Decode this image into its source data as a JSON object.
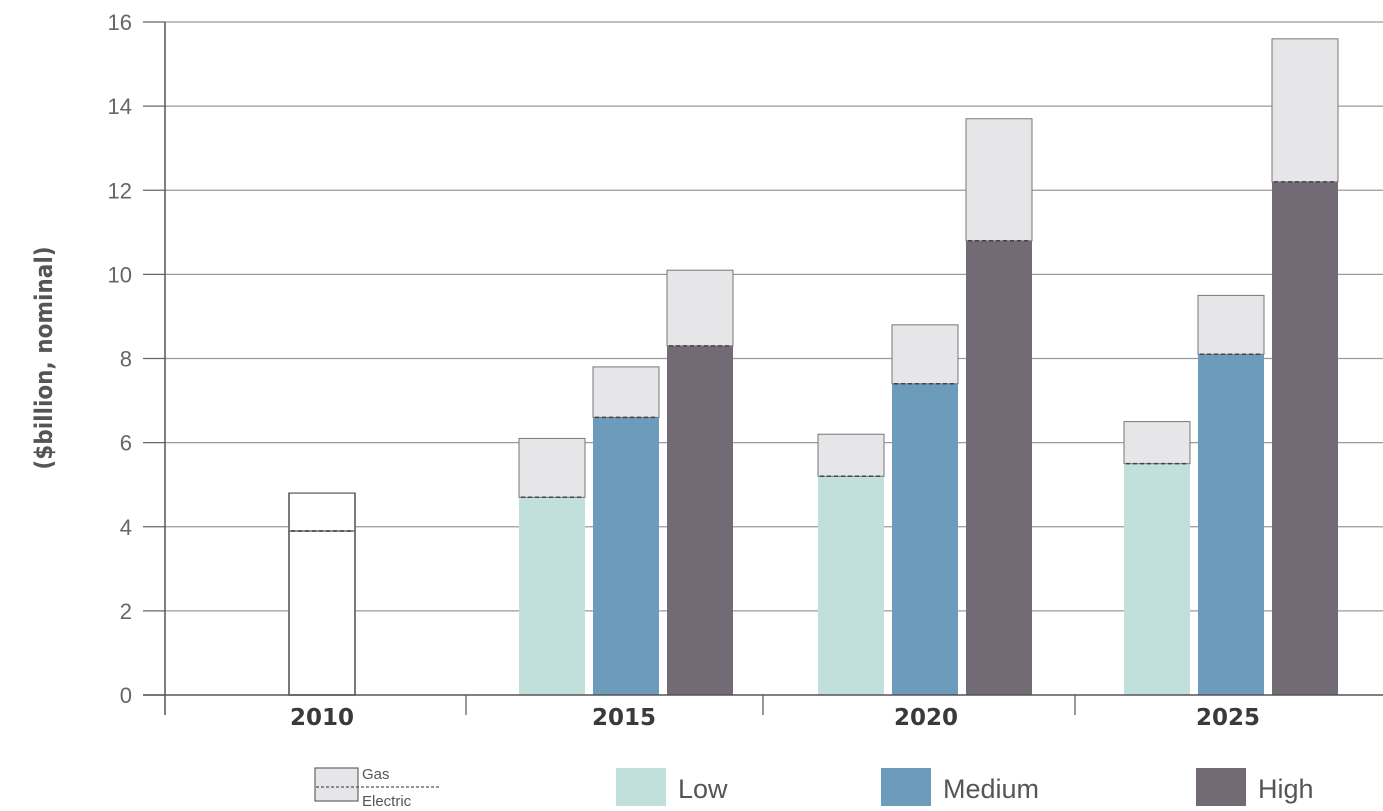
{
  "chart_data": {
    "type": "bar",
    "ylabel": "($billion, nominal)",
    "xlabel": "",
    "ylim": [
      0,
      16
    ],
    "yticks": [
      0,
      2,
      4,
      6,
      8,
      10,
      12,
      14,
      16
    ],
    "categories": [
      "2010",
      "2015",
      "2020",
      "2025"
    ],
    "grid": true,
    "stacked_components": [
      "Electric",
      "Gas"
    ],
    "legend": {
      "placement": "bottom",
      "entries": [
        {
          "label": "Low",
          "color": "#c1e0db"
        },
        {
          "label": "Medium",
          "color": "#6d9bbb"
        },
        {
          "label": "High",
          "color": "#726b75"
        }
      ],
      "stack_key": {
        "top": "Gas",
        "bottom": "Electric"
      }
    },
    "series": [
      {
        "name": "",
        "color": "#ffffff",
        "category": "2010",
        "electric": 3.9,
        "total": 4.8
      },
      {
        "name": "Low",
        "color": "#c1e0db",
        "values": {
          "2015": {
            "electric": 4.7,
            "total": 6.1
          },
          "2020": {
            "electric": 5.2,
            "total": 6.2
          },
          "2025": {
            "electric": 5.5,
            "total": 6.5
          }
        }
      },
      {
        "name": "Medium",
        "color": "#6d9bbb",
        "values": {
          "2015": {
            "electric": 6.6,
            "total": 7.8
          },
          "2020": {
            "electric": 7.4,
            "total": 8.8
          },
          "2025": {
            "electric": 8.1,
            "total": 9.5
          }
        }
      },
      {
        "name": "High",
        "color": "#726b75",
        "values": {
          "2015": {
            "electric": 8.3,
            "total": 10.1
          },
          "2020": {
            "electric": 10.8,
            "total": 13.7
          },
          "2025": {
            "electric": 12.2,
            "total": 15.6
          }
        }
      }
    ],
    "gas_color": "#e6e6e8"
  }
}
